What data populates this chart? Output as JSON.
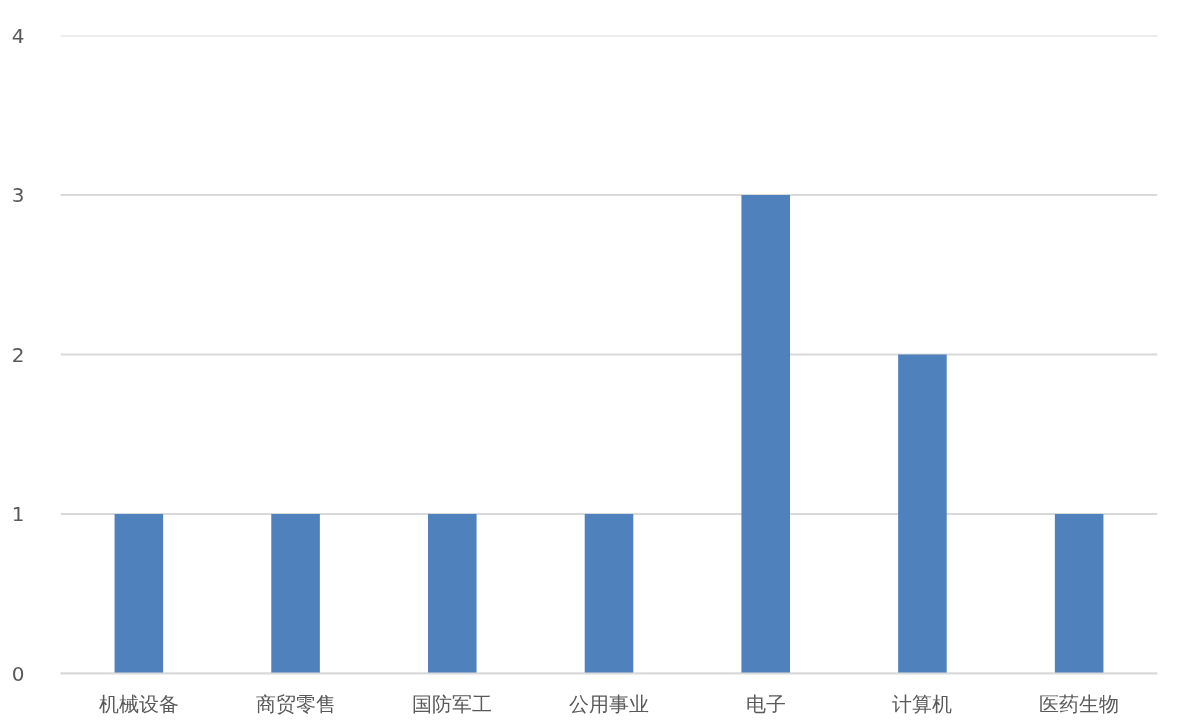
{
  "chart_data": {
    "type": "bar",
    "categories": [
      "机械设备",
      "商贸零售",
      "国防军工",
      "公用事业",
      "电子",
      "计算机",
      "医药生物"
    ],
    "values": [
      1,
      1,
      1,
      1,
      3,
      2,
      1
    ],
    "color": "#4f81bd",
    "ylim": [
      0,
      4
    ],
    "yticks": [
      0,
      1,
      2,
      3,
      4
    ],
    "grid": "y"
  }
}
